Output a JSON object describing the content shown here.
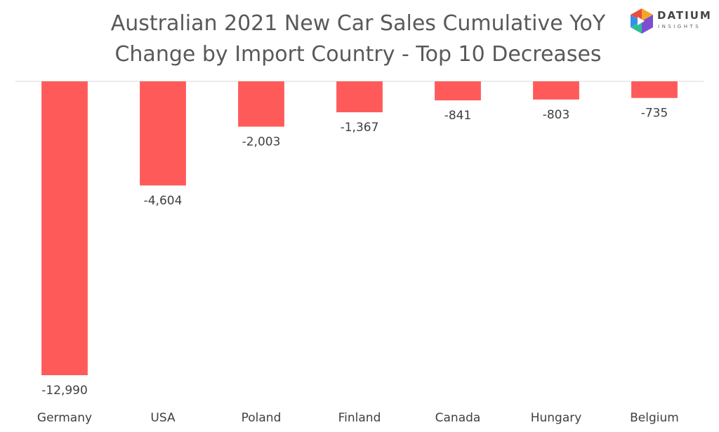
{
  "title_line1": "Australian 2021 New Car Sales Cumulative YoY",
  "title_line2": "Change by Import Country - Top 10 Decreases",
  "logo": {
    "word": "DATIUM",
    "sub": "INSIGHTS",
    "colors": [
      "#f5a623",
      "#e94e3c",
      "#3a8ee6",
      "#2dbd9b",
      "#7b4fd0"
    ]
  },
  "chart_data": {
    "type": "bar",
    "title": "Australian 2021 New Car Sales Cumulative YoY Change by Import Country - Top 10 Decreases",
    "categories": [
      "Germany",
      "USA",
      "Poland",
      "Finland",
      "Canada",
      "Hungary",
      "Belgium"
    ],
    "values": [
      -12990,
      -4604,
      -2003,
      -1367,
      -841,
      -803,
      -735
    ],
    "value_labels": [
      "-12,990",
      "-4,604",
      "-2,003",
      "-1,367",
      "-841",
      "-803",
      "-735"
    ],
    "bar_color": "#ff5a5a",
    "ylim": [
      -12990,
      0
    ],
    "grid": false,
    "legend": "none"
  }
}
